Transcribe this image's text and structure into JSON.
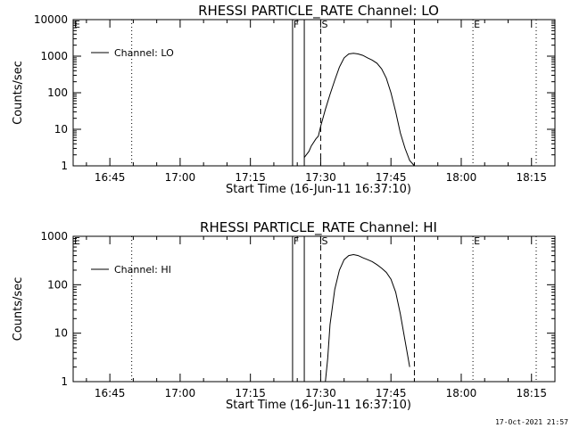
{
  "chart_data": [
    {
      "type": "line",
      "title": "RHESSI PARTICLE_RATE Channel: LO",
      "xlabel": "Start Time (16-Jun-11 16:37:10)",
      "ylabel": "Counts/sec",
      "yscale": "log",
      "ylim": [
        1,
        10000
      ],
      "xlim": [
        "16:37:10",
        "18:20:00"
      ],
      "x_tick_labels": [
        "16:45",
        "17:00",
        "17:15",
        "17:30",
        "17:45",
        "18:00",
        "18:15"
      ],
      "y_tick_labels": [
        "1",
        "10",
        "100",
        "1000",
        "10000"
      ],
      "legend": {
        "location": "top-left",
        "entries": [
          "Channel: LO"
        ]
      },
      "markers": [
        {
          "label": "E",
          "time": "16:37:10",
          "style": "dotted"
        },
        {
          "label": "",
          "time": "16:49:40",
          "style": "dotted"
        },
        {
          "label": "F",
          "time": "17:24:00",
          "style": "solid"
        },
        {
          "label": "",
          "time": "17:26:30",
          "style": "solid"
        },
        {
          "label": "S",
          "time": "17:30:00",
          "style": "dashed"
        },
        {
          "label": "",
          "time": "17:50:00",
          "style": "dashed"
        },
        {
          "label": "E",
          "time": "18:02:30",
          "style": "dotted"
        },
        {
          "label": "",
          "time": "18:16:00",
          "style": "dotted"
        }
      ],
      "series": [
        {
          "name": "Channel: LO",
          "x": [
            "17:26:30",
            "17:27:30",
            "17:28:00",
            "17:29:00",
            "17:29:30",
            "17:30:00",
            "17:31:00",
            "17:32:00",
            "17:33:00",
            "17:34:00",
            "17:35:00",
            "17:36:00",
            "17:37:00",
            "17:38:00",
            "17:39:00",
            "17:40:00",
            "17:41:00",
            "17:42:00",
            "17:43:00",
            "17:44:00",
            "17:45:00",
            "17:46:00",
            "17:47:00",
            "17:48:00",
            "17:49:00",
            "17:50:00"
          ],
          "y": [
            1.7,
            2.5,
            3.5,
            5.5,
            6.5,
            12,
            35,
            90,
            220,
            500,
            900,
            1150,
            1200,
            1150,
            1050,
            900,
            780,
            640,
            450,
            250,
            100,
            30,
            8,
            3,
            1.4,
            1.0
          ]
        }
      ]
    },
    {
      "type": "line",
      "title": "RHESSI PARTICLE_RATE Channel: HI",
      "xlabel": "Start Time (16-Jun-11 16:37:10)",
      "ylabel": "Counts/sec",
      "yscale": "log",
      "ylim": [
        1,
        1000
      ],
      "xlim": [
        "16:37:10",
        "18:20:00"
      ],
      "x_tick_labels": [
        "16:45",
        "17:00",
        "17:15",
        "17:30",
        "17:45",
        "18:00",
        "18:15"
      ],
      "y_tick_labels": [
        "1",
        "10",
        "100",
        "1000"
      ],
      "legend": {
        "location": "top-left",
        "entries": [
          "Channel: HI"
        ]
      },
      "markers": [
        {
          "label": "E",
          "time": "16:37:10",
          "style": "dotted"
        },
        {
          "label": "",
          "time": "16:49:40",
          "style": "dotted"
        },
        {
          "label": "F",
          "time": "17:24:00",
          "style": "solid"
        },
        {
          "label": "",
          "time": "17:26:30",
          "style": "solid"
        },
        {
          "label": "S",
          "time": "17:30:00",
          "style": "dashed"
        },
        {
          "label": "",
          "time": "17:50:00",
          "style": "dashed"
        },
        {
          "label": "E",
          "time": "18:02:30",
          "style": "dotted"
        },
        {
          "label": "",
          "time": "18:16:00",
          "style": "dotted"
        }
      ],
      "series": [
        {
          "name": "Channel: HI",
          "x": [
            "17:31:00",
            "17:31:30",
            "17:32:00",
            "17:33:00",
            "17:34:00",
            "17:35:00",
            "17:36:00",
            "17:37:00",
            "17:38:00",
            "17:39:00",
            "17:40:00",
            "17:41:00",
            "17:42:00",
            "17:43:00",
            "17:44:00",
            "17:45:00",
            "17:46:00",
            "17:47:00",
            "17:48:00",
            "17:49:00"
          ],
          "y": [
            1.0,
            3,
            15,
            80,
            200,
            330,
            400,
            420,
            400,
            360,
            330,
            300,
            260,
            220,
            180,
            130,
            70,
            25,
            7,
            2
          ]
        }
      ]
    }
  ],
  "timestamp": "17-Oct-2021 21:57"
}
